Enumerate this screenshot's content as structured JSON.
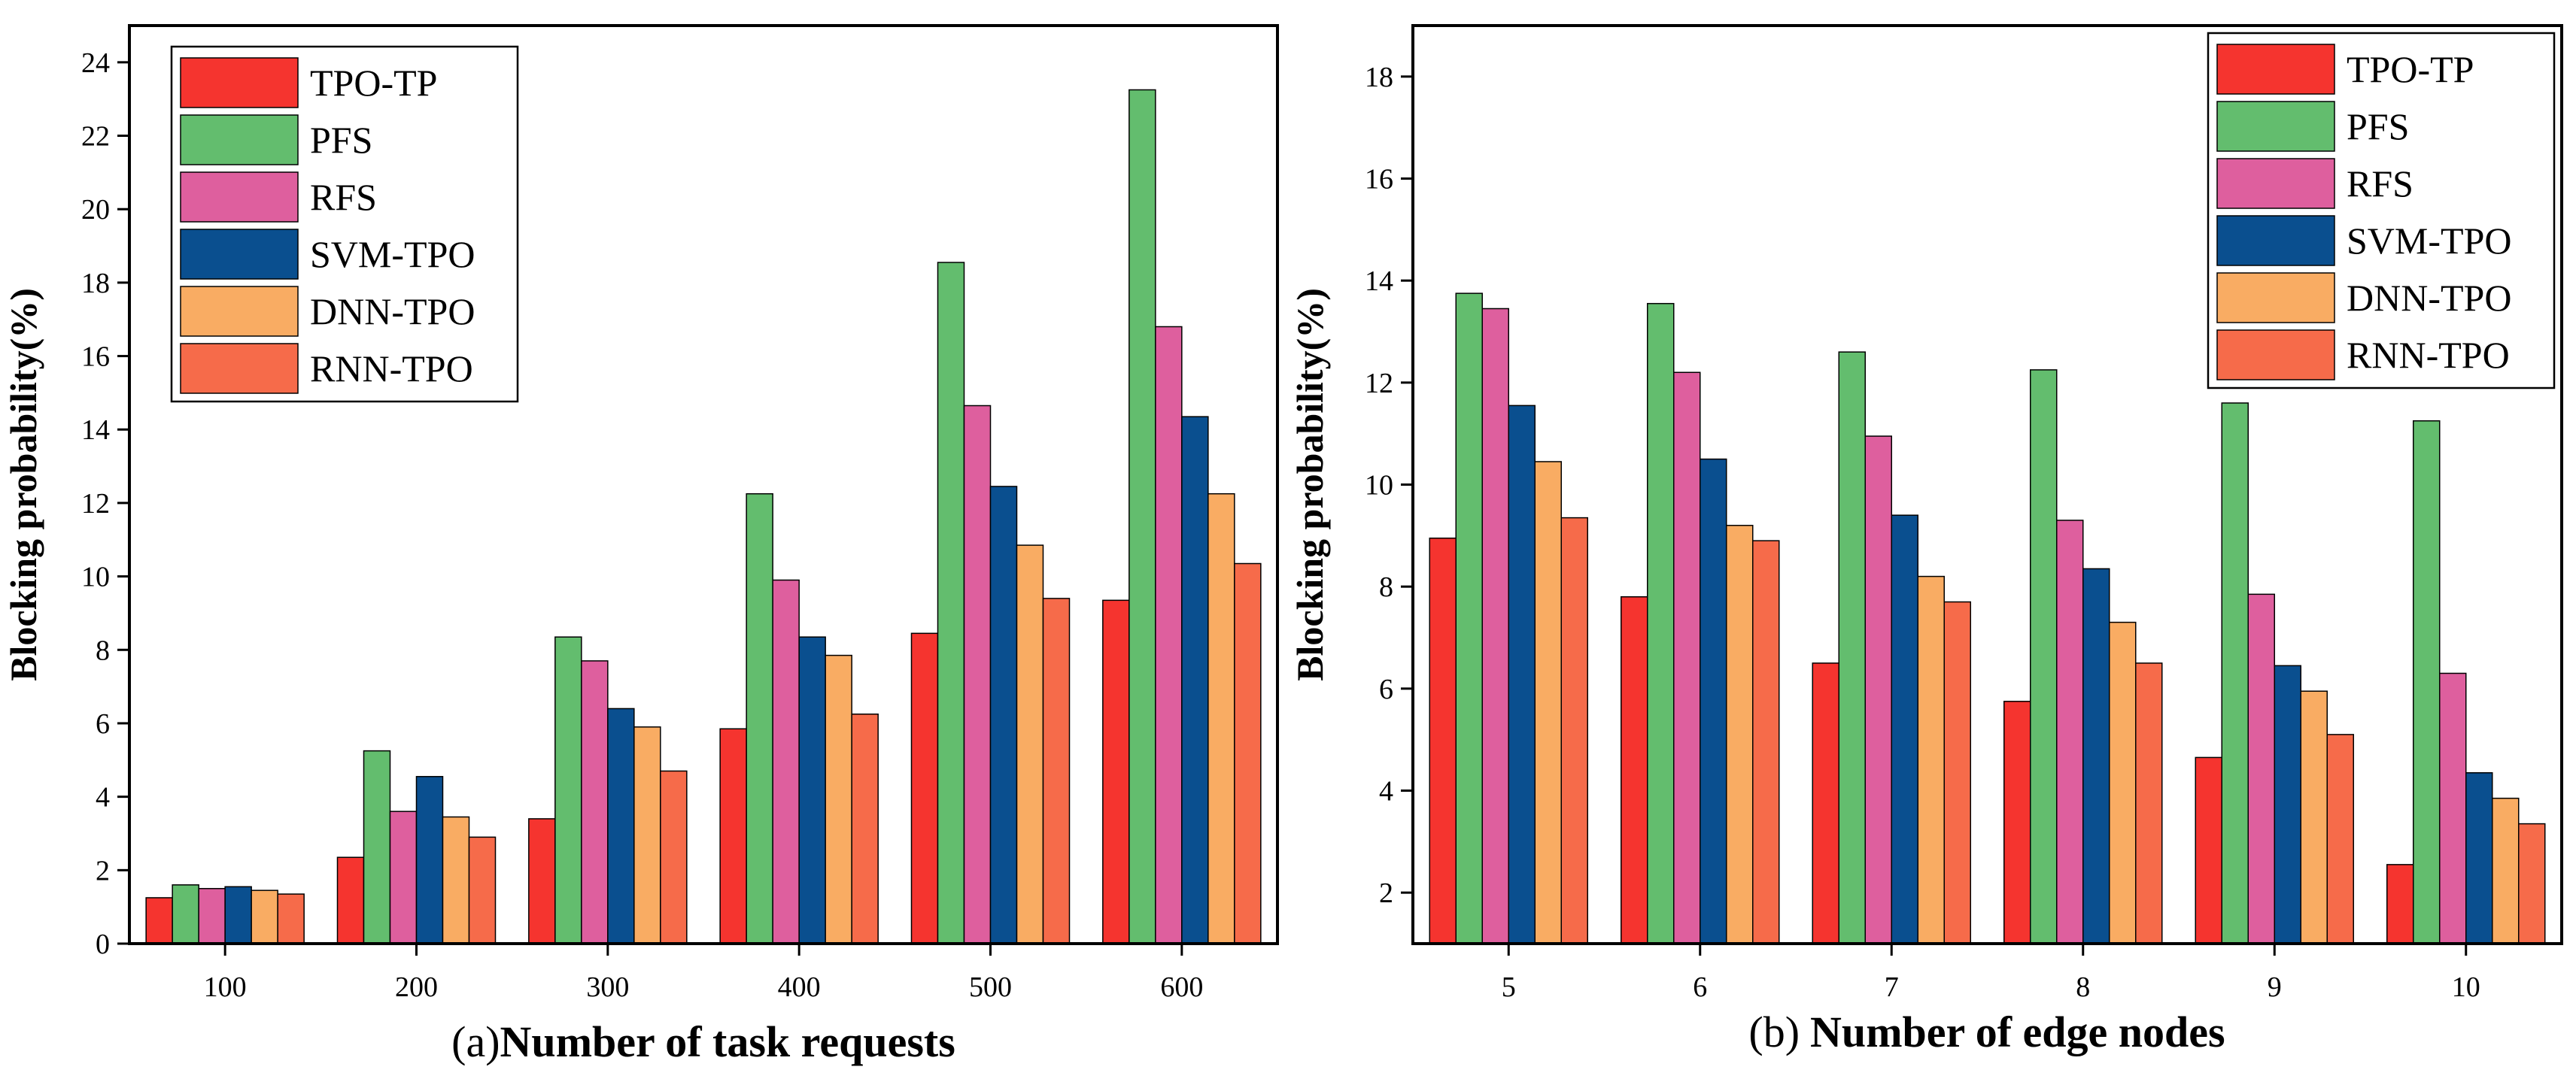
{
  "colors": {
    "TPO-TP": "#f5342f",
    "PFS": "#63bd6e",
    "RFS": "#de5f9e",
    "SVM-TPO": "#0a4f8f",
    "DNN-TPO": "#f9ac63",
    "RNN-TPO": "#f66b4a"
  },
  "chart_data": [
    {
      "type": "bar",
      "panel": "(a)",
      "xlabel_prefix": "(a)",
      "xlabel": "Number of  task requests",
      "ylabel": "Blocking probability(%)",
      "categories": [
        "100",
        "200",
        "300",
        "400",
        "500",
        "600"
      ],
      "ylim": [
        0,
        25
      ],
      "yticks": [
        0,
        2,
        4,
        6,
        8,
        10,
        12,
        14,
        16,
        18,
        20,
        22,
        24
      ],
      "legend_position": "top-left",
      "series": [
        {
          "name": "TPO-TP",
          "values": [
            1.25,
            2.35,
            3.4,
            5.85,
            8.45,
            9.35
          ]
        },
        {
          "name": "PFS",
          "values": [
            1.6,
            5.25,
            8.35,
            12.25,
            18.55,
            23.25
          ]
        },
        {
          "name": "RFS",
          "values": [
            1.5,
            3.6,
            7.7,
            9.9,
            14.65,
            16.8
          ]
        },
        {
          "name": "SVM-TPO",
          "values": [
            1.55,
            4.55,
            6.4,
            8.35,
            12.45,
            14.35
          ]
        },
        {
          "name": "DNN-TPO",
          "values": [
            1.45,
            3.45,
            5.9,
            7.85,
            10.85,
            12.25
          ]
        },
        {
          "name": "RNN-TPO",
          "values": [
            1.35,
            2.9,
            4.7,
            6.25,
            9.4,
            10.35
          ]
        }
      ]
    },
    {
      "type": "bar",
      "panel": "(b)",
      "xlabel_prefix": "(b)",
      "xlabel": "Number of edge nodes",
      "ylabel": "Blocking probability(%)",
      "categories": [
        "5",
        "6",
        "7",
        "8",
        "9",
        "10"
      ],
      "ylim": [
        1,
        19
      ],
      "yticks": [
        2,
        4,
        6,
        8,
        10,
        12,
        14,
        16,
        18
      ],
      "legend_position": "top-right",
      "series": [
        {
          "name": "TPO-TP",
          "values": [
            8.95,
            7.8,
            6.5,
            5.75,
            4.65,
            2.55
          ]
        },
        {
          "name": "PFS",
          "values": [
            13.75,
            13.55,
            12.6,
            12.25,
            11.6,
            11.25
          ]
        },
        {
          "name": "RFS",
          "values": [
            13.45,
            12.2,
            10.95,
            9.3,
            7.85,
            6.3
          ]
        },
        {
          "name": "SVM-TPO",
          "values": [
            11.55,
            10.5,
            9.4,
            8.35,
            6.45,
            4.35
          ]
        },
        {
          "name": "DNN-TPO",
          "values": [
            10.45,
            9.2,
            8.2,
            7.3,
            5.95,
            3.85
          ]
        },
        {
          "name": "RNN-TPO",
          "values": [
            9.35,
            8.9,
            7.7,
            6.5,
            5.1,
            3.35
          ]
        }
      ]
    }
  ]
}
